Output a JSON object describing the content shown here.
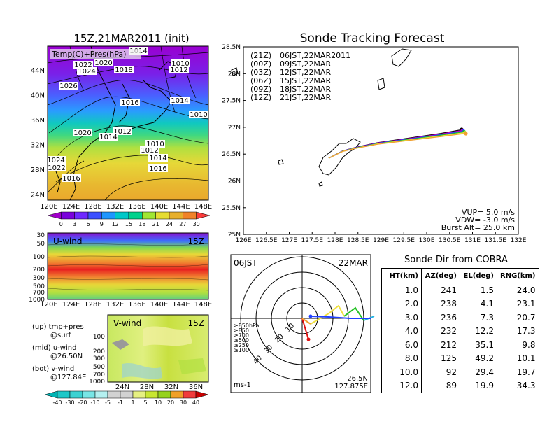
{
  "init_map": {
    "title": "15Z,21MAR2011 (init)",
    "overlay_label": "Temp(C)+Pres(hPa)",
    "lat_ticks": [
      "44N",
      "40N",
      "36N",
      "32N",
      "28N",
      "24N"
    ],
    "lon_ticks": [
      "120E",
      "124E",
      "128E",
      "132E",
      "136E",
      "140E",
      "144E",
      "148E"
    ],
    "pressure_labels": [
      "1014",
      "1020",
      "1022",
      "1024",
      "1018",
      "1010",
      "1012",
      "1026",
      "1016",
      "1014",
      "1010",
      "1020",
      "1012",
      "1014",
      "1010",
      "1012",
      "1014",
      "1024",
      "1022",
      "1016",
      "1016"
    ],
    "colorbar": {
      "labels": [
        "0",
        "3",
        "6",
        "9",
        "12",
        "15",
        "18",
        "21",
        "24",
        "27",
        "30"
      ],
      "colors": [
        "#a000c8",
        "#7a00dc",
        "#6e28ff",
        "#3c50ff",
        "#1e96ff",
        "#00c8c8",
        "#00d28c",
        "#a0e632",
        "#e6dc32",
        "#e6af2d",
        "#f08228",
        "#fa3c3c"
      ]
    }
  },
  "uwind": {
    "title": "U-wind",
    "time": "15Z",
    "y_ticks": [
      "30",
      "50",
      "100",
      "200",
      "300",
      "500",
      "700",
      "1000"
    ],
    "x_ticks": [
      "120E",
      "124E",
      "128E",
      "132E",
      "136E",
      "140E",
      "144E",
      "148E"
    ]
  },
  "vwind": {
    "title": "V-wind",
    "time": "15Z",
    "y_ticks": [
      "100",
      "200",
      "300",
      "500",
      "700",
      "1000"
    ],
    "x_ticks": [
      "24N",
      "28N",
      "32N",
      "36N"
    ],
    "colorbar": {
      "labels": [
        "-40",
        "-30",
        "-20",
        "-10",
        "-5",
        "-1",
        "1",
        "5",
        "10",
        "20",
        "30",
        "40"
      ],
      "colors": [
        "#00b4b4",
        "#1ec8c8",
        "#3cd2d2",
        "#78e6e6",
        "#b4f0f0",
        "#d2d2d2",
        "#d2d2d2",
        "#e6f082",
        "#c8e632",
        "#96d21e",
        "#f0a028",
        "#f03c3c",
        "#c80000"
      ]
    }
  },
  "notes": [
    {
      "head": "(up) tmp+pres",
      "sub": "@surf"
    },
    {
      "head": "(mid) u-wind",
      "sub": "@26.50N"
    },
    {
      "head": "(bot) v-wind",
      "sub": "@127.84E"
    }
  ],
  "tracking": {
    "title": "Sonde Tracking Forecast",
    "lat_ticks": [
      "28.5N",
      "28N",
      "27.5N",
      "27N",
      "26.5N",
      "26N",
      "25.5N",
      "25N"
    ],
    "lon_ticks": [
      "126E",
      "126.5E",
      "127E",
      "127.5E",
      "128E",
      "128.5E",
      "129E",
      "129.5E",
      "130E",
      "130.5E",
      "131E",
      "131.5E",
      "132E"
    ],
    "legend": [
      {
        "time": "(21Z)",
        "label": "06JST,22MAR2011",
        "color": "#000000"
      },
      {
        "time": "(00Z)",
        "label": "09JST,22MAR",
        "color": "#c000c0"
      },
      {
        "time": "(03Z)",
        "label": "12JST,22MAR",
        "color": "#2040ff"
      },
      {
        "time": "(06Z)",
        "label": "15JST,22MAR",
        "color": "#20c020"
      },
      {
        "time": "(09Z)",
        "label": "18JST,22MAR",
        "color": "#f0e040"
      },
      {
        "time": "(12Z)",
        "label": "21JST,22MAR",
        "color": "#f0a030"
      }
    ],
    "params": [
      "VUP= 5.0 m/s",
      "VDW= -3.0 m/s",
      "Burst Alt= 25.0 km"
    ]
  },
  "polar": {
    "time": "06JST",
    "date": "22MAR",
    "ring_labels": [
      "10",
      "20",
      "30",
      "40"
    ],
    "levels": [
      {
        "label": "≥850hPa",
        "color": "#e01010"
      },
      {
        "label": "≥850",
        "color": "#f0a030"
      },
      {
        "label": "≥700",
        "color": "#f0e040"
      },
      {
        "label": "≥500",
        "color": "#20c020"
      },
      {
        "label": "≥250",
        "color": "#20b0e0"
      },
      {
        "label": "≥100",
        "color": "#2040ff"
      }
    ],
    "unit": "ms-1",
    "lat": "26.5N",
    "lon": "127.875E"
  },
  "sonde_dir": {
    "title": "Sonde Dir from COBRA",
    "headers": [
      "HT(km)",
      "AZ(deg)",
      "EL(deg)",
      "RNG(km)"
    ],
    "rows": [
      [
        "1.0",
        "241",
        "1.5",
        "24.0"
      ],
      [
        "2.0",
        "238",
        "4.1",
        "23.1"
      ],
      [
        "3.0",
        "236",
        "7.3",
        "20.7"
      ],
      [
        "4.0",
        "232",
        "12.2",
        "17.3"
      ],
      [
        "6.0",
        "212",
        "35.1",
        "9.8"
      ],
      [
        "8.0",
        "125",
        "49.2",
        "10.1"
      ],
      [
        "10.0",
        "92",
        "29.4",
        "19.7"
      ],
      [
        "12.0",
        "89",
        "19.9",
        "34.3"
      ]
    ]
  },
  "chart_data": {
    "type": "table",
    "title": "Sonde Dir from COBRA",
    "columns": [
      "HT(km)",
      "AZ(deg)",
      "EL(deg)",
      "RNG(km)"
    ],
    "rows": [
      [
        1.0,
        241,
        1.5,
        24.0
      ],
      [
        2.0,
        238,
        4.1,
        23.1
      ],
      [
        3.0,
        236,
        7.3,
        20.7
      ],
      [
        4.0,
        232,
        12.2,
        17.3
      ],
      [
        6.0,
        212,
        35.1,
        9.8
      ],
      [
        8.0,
        125,
        49.2,
        10.1
      ],
      [
        10.0,
        92,
        29.4,
        19.7
      ],
      [
        12.0,
        89,
        19.9,
        34.3
      ]
    ]
  }
}
